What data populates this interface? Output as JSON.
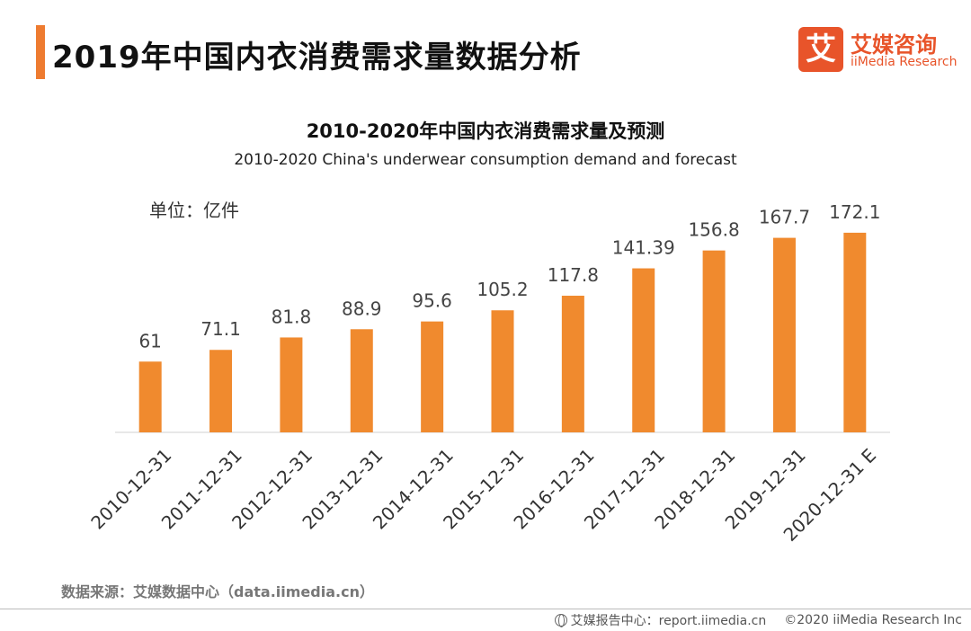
{
  "header": {
    "title": "2019年中国内衣消费需求量数据分析",
    "accent_color": "#ee7b30"
  },
  "logo": {
    "glyph": "艾",
    "name_cn": "艾媒咨询",
    "name_en": "iiMedia Research",
    "color": "#e8542a"
  },
  "chart_data": {
    "type": "bar",
    "title": "2010-2020年中国内衣消费需求量及预测",
    "subtitle": "2010-2020 China's underwear consumption demand and forecast",
    "unit_label": "单位：亿件",
    "categories": [
      "2010-12-31",
      "2011-12-31",
      "2012-12-31",
      "2013-12-31",
      "2014-12-31",
      "2015-12-31",
      "2016-12-31",
      "2017-12-31",
      "2018-12-31",
      "2019-12-31",
      "2020-12-31 E"
    ],
    "value_labels": [
      "61",
      "71.1",
      "81.8",
      "88.9",
      "95.6",
      "105.2",
      "117.8",
      "141.39",
      "156.8",
      "167.7",
      "172.1"
    ],
    "values": [
      61,
      71.1,
      81.8,
      88.9,
      95.6,
      105.2,
      117.8,
      141.39,
      156.8,
      167.7,
      172.1
    ],
    "ylim": [
      0,
      210
    ],
    "bar_color": "#f08a2e",
    "grid": false,
    "legend": "none"
  },
  "footer": {
    "source": "数据来源：艾媒数据中心（data.iimedia.cn）",
    "report_center": "艾媒报告中心：report.iimedia.cn",
    "copyright": "©2020  iiMedia Research  Inc",
    "icon": "globe-icon"
  }
}
